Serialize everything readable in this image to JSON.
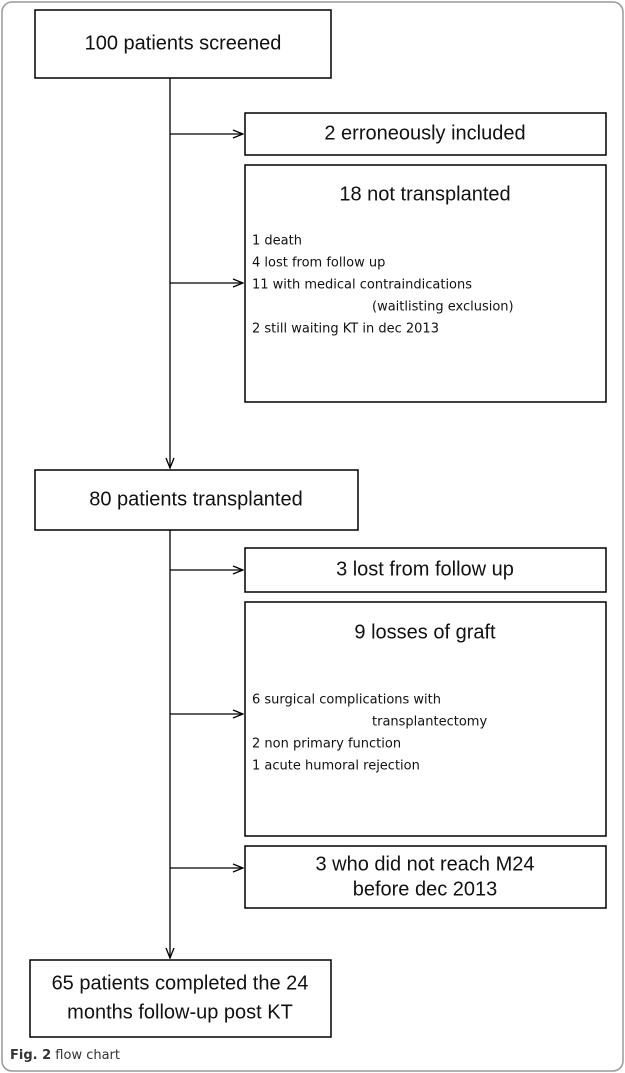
{
  "nodes": [
    {
      "title": [
        "100 patients  screened"
      ]
    },
    {
      "title": [
        "2 erroneously included"
      ]
    },
    {
      "title": [
        "18 not transplanted"
      ],
      "details": [
        "1 death",
        "4 lost from follow up",
        "11 with medical contraindications",
        "(waitlisting exclusion)",
        "2 still waiting KT in dec 2013"
      ]
    },
    {
      "title": [
        "80 patients  transplanted"
      ]
    },
    {
      "title": [
        "3 lost from follow up"
      ]
    },
    {
      "title": [
        "9 losses of graft"
      ],
      "details": [
        "6 surgical complications with",
        "transplantectomy",
        "2 non primary function",
        "1 acute humoral rejection"
      ]
    },
    {
      "title": [
        "3 who did not reach M24",
        "before dec 2013"
      ]
    },
    {
      "title": [
        "65 patients  completed the 24",
        "months follow-up post KT"
      ]
    }
  ],
  "caption": {
    "label": "Fig. 2",
    "text": "flow chart"
  }
}
